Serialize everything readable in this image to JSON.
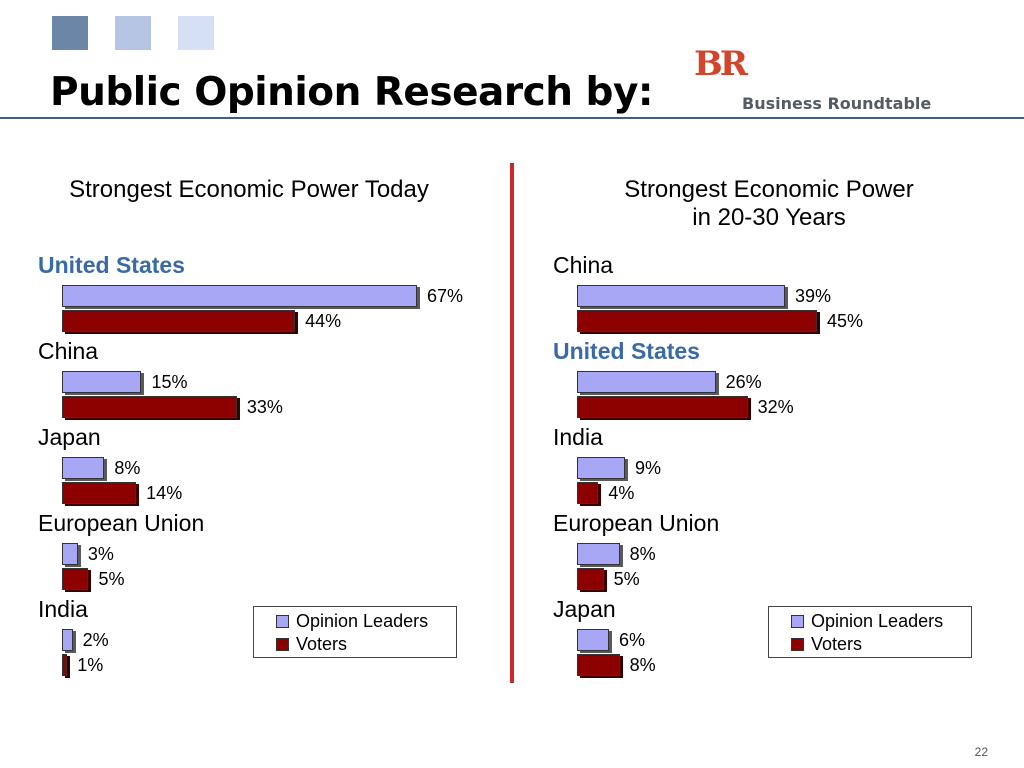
{
  "slide": {
    "title": "Public Opinion Research by:",
    "logo_text": "Business Roundtable",
    "logo_mark": "BR",
    "page_number": "22",
    "accent_squares": [
      "#6b86a6",
      "#b4c4e2",
      "#d6e0f4"
    ],
    "rule_color": "#3c5f83",
    "divider_color": "#cc2a2a"
  },
  "chart_data": [
    {
      "type": "bar",
      "orientation": "horizontal",
      "title": "Strongest Economic Power Today",
      "categories": [
        "United States",
        "China",
        "Japan",
        "European Union",
        "India"
      ],
      "highlight": "United States",
      "series": [
        {
          "name": "Opinion Leaders",
          "values": [
            67,
            15,
            8,
            3,
            2
          ],
          "labels": [
            "67%",
            "15%",
            "8%",
            "3%",
            "2%"
          ],
          "color": "#a7a7f5"
        },
        {
          "name": "Voters",
          "values": [
            44,
            33,
            14,
            5,
            1
          ],
          "labels": [
            "44%",
            "33%",
            "14%",
            "5%",
            "1%"
          ],
          "color": "#8c0000"
        }
      ],
      "xlim": [
        0,
        67
      ],
      "legend": "bottom-right",
      "grid": false
    },
    {
      "type": "bar",
      "orientation": "horizontal",
      "title": "Strongest Economic Power in 20-30 Years",
      "title_lines": [
        "Strongest Economic Power",
        "in 20-30 Years"
      ],
      "categories": [
        "China",
        "United States",
        "India",
        "European Union",
        "Japan"
      ],
      "highlight": "United States",
      "series": [
        {
          "name": "Opinion Leaders",
          "values": [
            39,
            26,
            9,
            8,
            6
          ],
          "labels": [
            "39%",
            "26%",
            "9%",
            "8%",
            "6%"
          ],
          "color": "#a7a7f5"
        },
        {
          "name": "Voters",
          "values": [
            45,
            32,
            4,
            5,
            8
          ],
          "labels": [
            "45%",
            "32%",
            "4%",
            "5%",
            "8%"
          ],
          "color": "#8c0000"
        }
      ],
      "xlim": [
        0,
        45
      ],
      "legend": "bottom-right",
      "grid": false
    }
  ]
}
